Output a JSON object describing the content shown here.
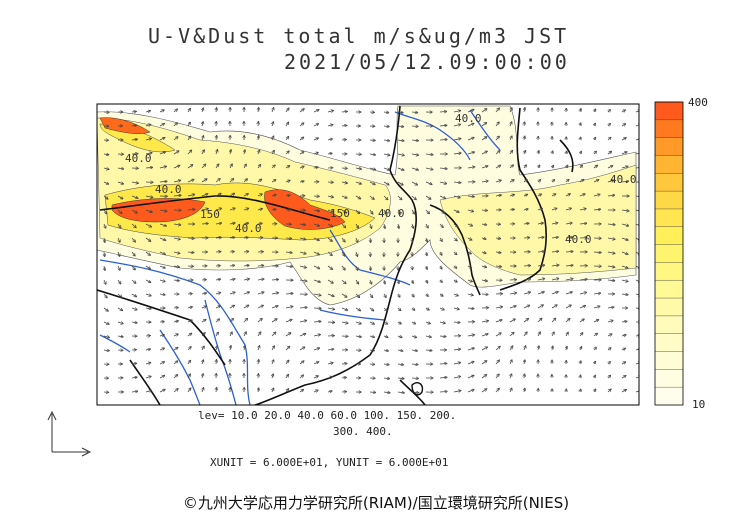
{
  "title": {
    "line1": "U-V&Dust total m/s&ug/m3 JST",
    "line2": "2021/05/12.09:00:00"
  },
  "contour_labels": [
    "40.0",
    "150",
    "40.0",
    "150",
    "40.0",
    "40.0",
    "40.0",
    "40.0",
    "40.0"
  ],
  "legend": {
    "levels_line1": "lev= 10.0 20.0 40.0 60.0 100. 150. 200.",
    "levels_line2": "300. 400.",
    "unit_line": "XUNIT = 6.000E+01, YUNIT = 6.000E+01"
  },
  "colorbar": {
    "max_label": "400",
    "min_label": "10",
    "colors": [
      "#ff5a1e",
      "#ff7a1e",
      "#ff9a28",
      "#ffb432",
      "#ffc83c",
      "#ffd846",
      "#ffe650",
      "#fff05a",
      "#fff46e",
      "#fff782",
      "#fff996",
      "#fffaa8",
      "#fffbba",
      "#fffcc8",
      "#fffdd6",
      "#fffee2",
      "#fffeec"
    ]
  },
  "copyright": "©九州大学応用力学研究所(RIAM)/国立環境研究所(NIES)"
}
